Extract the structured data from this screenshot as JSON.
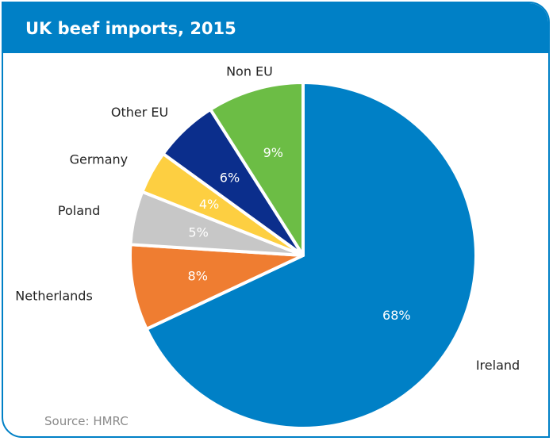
{
  "header": {
    "title": "UK beef imports, 2015"
  },
  "footer": {
    "source": "Source: HMRC"
  },
  "chart_data": {
    "type": "pie",
    "title": "UK beef imports, 2015",
    "slices": [
      {
        "label": "Ireland",
        "value": 68,
        "value_label": "68%",
        "color": "#0080c6",
        "text_color": "#ffffff"
      },
      {
        "label": "Netherlands",
        "value": 8,
        "value_label": "8%",
        "color": "#ef7d31",
        "text_color": "#ffffff"
      },
      {
        "label": "Poland",
        "value": 5,
        "value_label": "5%",
        "color": "#c7c7c7",
        "text_color": "#ffffff"
      },
      {
        "label": "Germany",
        "value": 4,
        "value_label": "4%",
        "color": "#fdcf41",
        "text_color": "#ffffff"
      },
      {
        "label": "Other EU",
        "value": 6,
        "value_label": "6%",
        "color": "#0b2e8c",
        "text_color": "#ffffff"
      },
      {
        "label": "Non EU",
        "value": 9,
        "value_label": "9%",
        "color": "#6cbd45",
        "text_color": "#ffffff"
      }
    ],
    "start_angle_deg": 0,
    "direction": "clockwise",
    "legend": "none"
  }
}
